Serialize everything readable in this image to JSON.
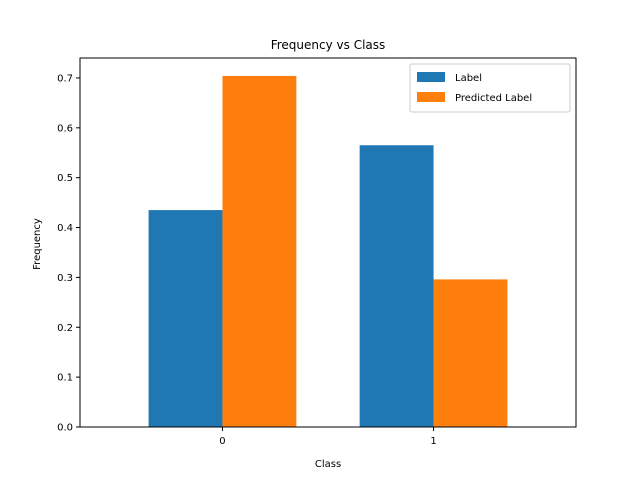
{
  "chart_data": {
    "type": "bar",
    "title": "Frequency vs Class",
    "xlabel": "Class",
    "ylabel": "Frequency",
    "categories": [
      "0",
      "1"
    ],
    "series": [
      {
        "name": "Label",
        "values": [
          0.435,
          0.565
        ],
        "color": "#1f77b4"
      },
      {
        "name": "Predicted Label",
        "values": [
          0.704,
          0.296
        ],
        "color": "#ff7f0e"
      }
    ],
    "ylim": [
      0,
      0.74
    ],
    "yticks": [
      0.0,
      0.1,
      0.2,
      0.3,
      0.4,
      0.5,
      0.6,
      0.7
    ],
    "ytick_labels": [
      "0.0",
      "0.1",
      "0.2",
      "0.3",
      "0.4",
      "0.5",
      "0.6",
      "0.7"
    ],
    "grid": false,
    "legend_position": "top-right"
  }
}
